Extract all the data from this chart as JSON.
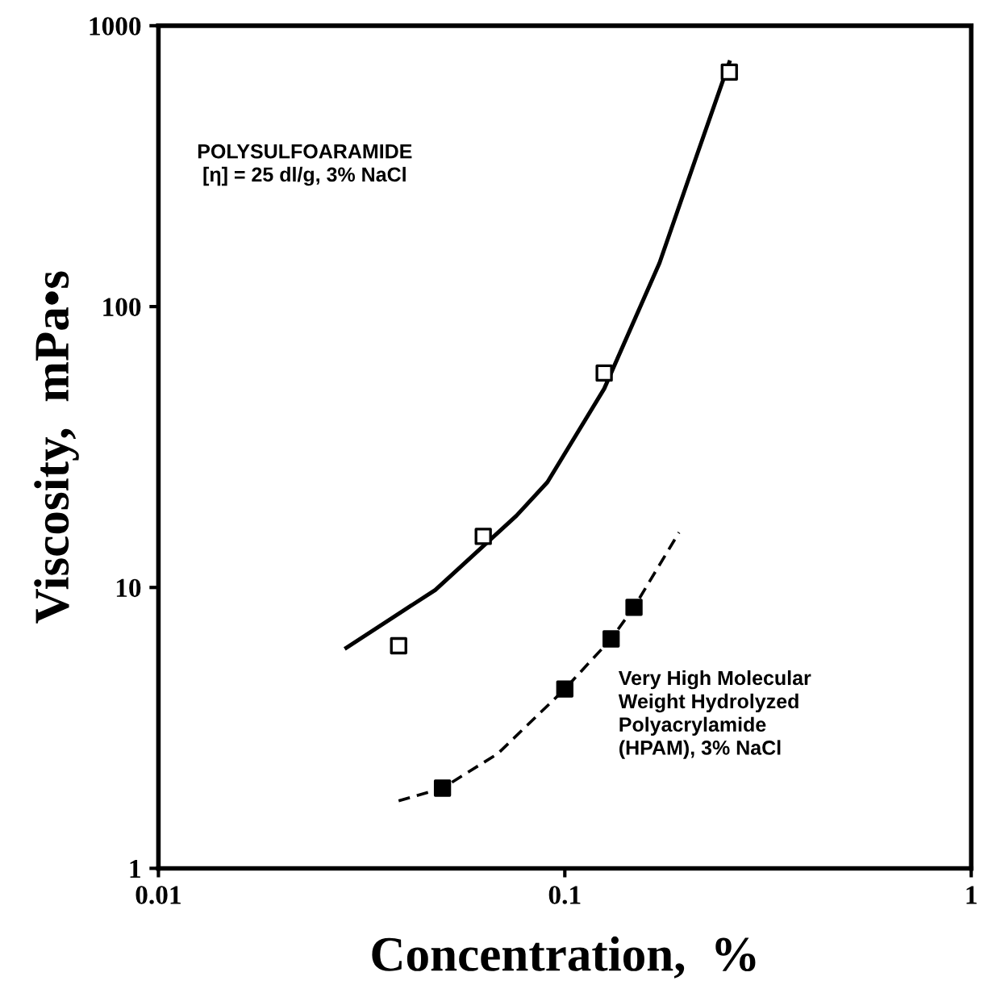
{
  "chart_data": {
    "type": "scatter",
    "xlabel": "Concentration,  %",
    "ylabel": "Viscosity,  mPa•s",
    "log": "xy",
    "xlim": [
      0.01,
      1
    ],
    "ylim": [
      1,
      1000
    ],
    "xticks": [
      0.01,
      0.1,
      1
    ],
    "yticks": [
      1,
      10,
      100,
      1000
    ],
    "grid": false,
    "legend": false,
    "annotations": [
      "POLYSULFOARAMIDE\n[η] = 25 dl/g, 3% NaCl",
      "Very High Molecular\nWeight Hydrolyzed\nPolyacrylamide\n(HPAM), 3% NaCl"
    ],
    "series": [
      {
        "marker": "square",
        "color": "#ffffff",
        "x": [
          0.039,
          0.063,
          0.125,
          0.254
        ],
        "values": [
          6.2,
          15.2,
          58,
          684
        ]
      },
      {
        "marker": "square",
        "color": "#000000",
        "x": [
          0.05,
          0.1,
          0.13,
          0.148
        ],
        "values": [
          1.93,
          4.35,
          6.56,
          8.5
        ]
      },
      {
        "type": "line",
        "line_style": "solid",
        "color": "#000000",
        "x": [
          0.029,
          0.048,
          0.076,
          0.0906,
          0.125,
          0.171,
          0.211,
          0.254
        ],
        "values": [
          6.1,
          9.8,
          18,
          23.7,
          51,
          143,
          344,
          741
        ]
      },
      {
        "type": "line",
        "line_style": "dashed",
        "color": "#000000",
        "x": [
          0.039,
          0.05,
          0.0684,
          0.1,
          0.13,
          0.148,
          0.191
        ],
        "values": [
          1.74,
          1.93,
          2.56,
          4.35,
          6.56,
          8.5,
          15.7
        ]
      }
    ]
  }
}
